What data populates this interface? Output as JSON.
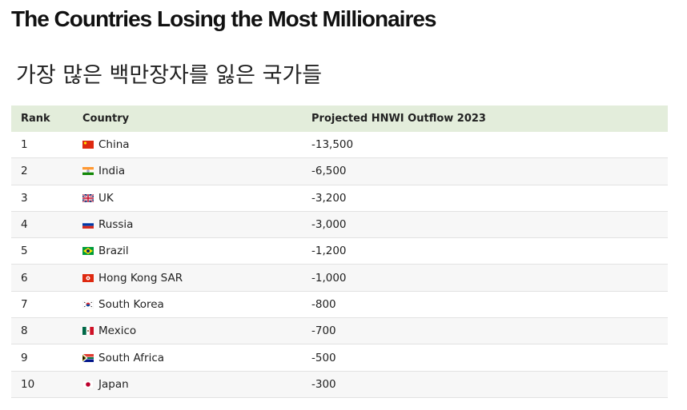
{
  "header": {
    "title": "The Countries Losing the Most Millionaires",
    "subtitle": "가장 많은 백만장자를 잃은 국가들"
  },
  "table": {
    "columns": [
      "Rank",
      "Country",
      "Projected HNWI Outflow 2023"
    ],
    "rows": [
      [
        "1",
        "China",
        "-13,500"
      ],
      [
        "2",
        "India",
        "-6,500"
      ],
      [
        "3",
        "UK",
        "-3,200"
      ],
      [
        "4",
        "Russia",
        "-3,000"
      ],
      [
        "5",
        "Brazil",
        "-1,200"
      ],
      [
        "6",
        "Hong Kong SAR",
        "-1,000"
      ],
      [
        "7",
        "South Korea",
        "-800"
      ],
      [
        "8",
        "Mexico",
        "-700"
      ],
      [
        "9",
        "South Africa",
        "-500"
      ],
      [
        "10",
        "Japan",
        "-300"
      ]
    ]
  }
}
